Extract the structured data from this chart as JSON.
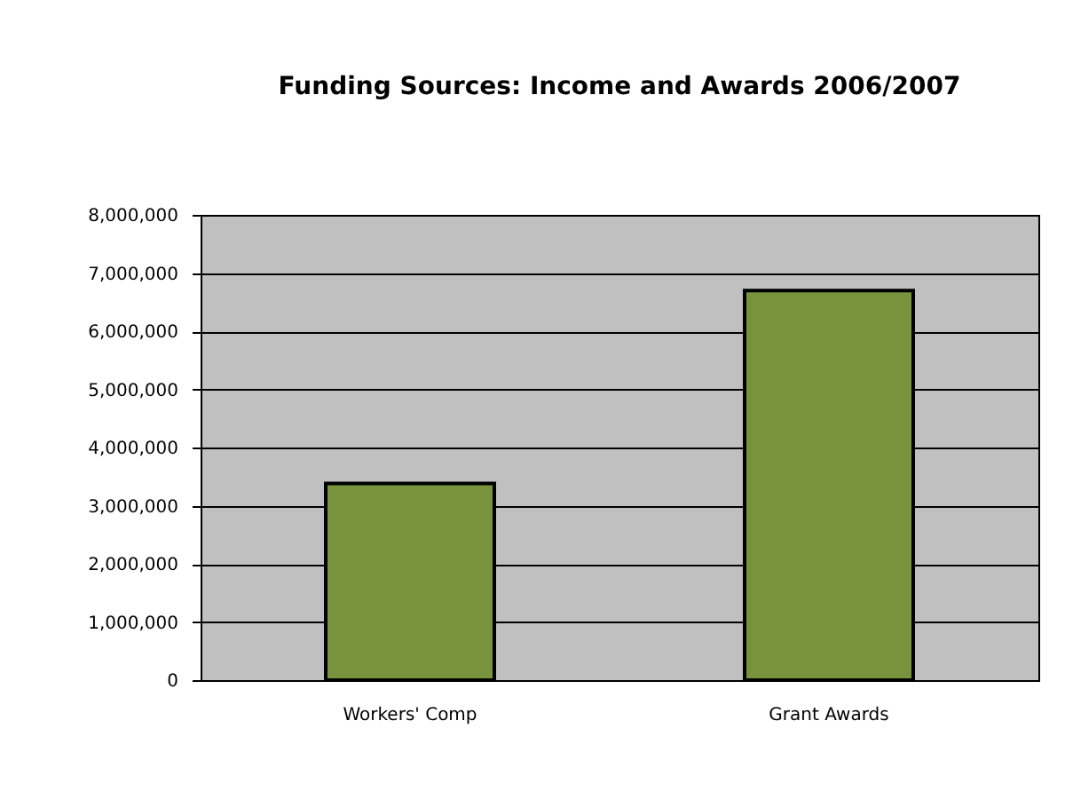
{
  "chart_data": {
    "type": "bar",
    "title": "Funding Sources:  Income and Awards 2006/2007",
    "categories": [
      "Workers' Comp",
      "Grant Awards"
    ],
    "values": [
      3380000,
      6700000
    ],
    "color": "#77933c",
    "ylim": [
      0,
      8000000
    ],
    "yticks": [
      0,
      {
        "value": 1000000,
        "label": "1,000,000"
      },
      {
        "value": 2000000,
        "label": "2,000,000"
      },
      {
        "value": 3000000,
        "label": "3,000,000"
      },
      {
        "value": 4000000,
        "label": "4,000,000"
      },
      {
        "value": 5000000,
        "label": "5,000,000"
      },
      {
        "value": 6000000,
        "label": "6,000,000"
      },
      {
        "value": 7000000,
        "label": "7,000,000"
      },
      {
        "value": 8000000,
        "label": "8,000,000"
      }
    ],
    "grid": "y"
  }
}
